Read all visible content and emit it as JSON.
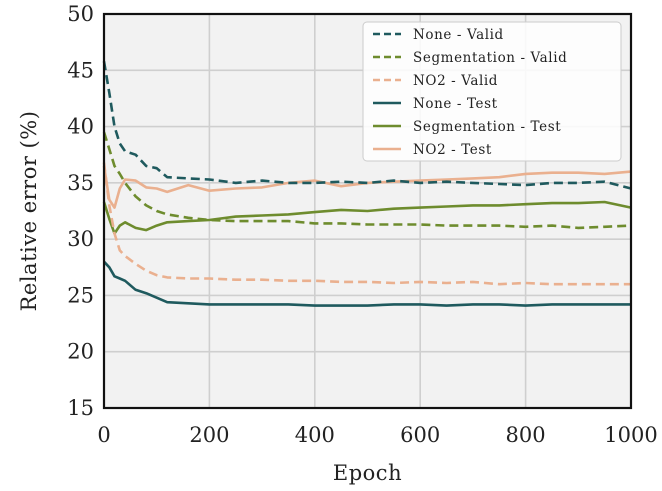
{
  "chart_data": {
    "type": "line",
    "xlabel": "Epoch",
    "ylabel": "Relative error (%)",
    "xlim": [
      0,
      1000
    ],
    "ylim": [
      15,
      50
    ],
    "xticks": [
      "0",
      "200",
      "400",
      "600",
      "800",
      "1000"
    ],
    "yticks": [
      "15",
      "20",
      "25",
      "30",
      "35",
      "40",
      "45",
      "50"
    ],
    "grid": true,
    "legend_position": "top-right",
    "series": [
      {
        "name": "None - Valid",
        "color": "#1f5a5e",
        "dash": "dashed",
        "x": [
          0,
          10,
          20,
          30,
          40,
          60,
          80,
          100,
          120,
          160,
          200,
          250,
          300,
          350,
          400,
          450,
          500,
          550,
          600,
          650,
          700,
          750,
          800,
          850,
          900,
          950,
          1000
        ],
        "y": [
          45.8,
          43.0,
          40.0,
          38.5,
          37.8,
          37.5,
          36.5,
          36.3,
          35.5,
          35.4,
          35.3,
          35.0,
          35.2,
          35.0,
          35.0,
          35.1,
          35.0,
          35.2,
          35.0,
          35.1,
          35.0,
          34.9,
          34.8,
          35.0,
          35.0,
          35.1,
          34.5
        ]
      },
      {
        "name": "Segmentation - Valid",
        "color": "#6e8c2e",
        "dash": "dashed",
        "x": [
          0,
          10,
          20,
          30,
          40,
          60,
          80,
          100,
          120,
          160,
          200,
          250,
          300,
          350,
          400,
          450,
          500,
          550,
          600,
          650,
          700,
          750,
          800,
          850,
          900,
          950,
          1000
        ],
        "y": [
          39.5,
          38.0,
          36.5,
          35.8,
          35.0,
          33.8,
          33.0,
          32.5,
          32.2,
          31.9,
          31.7,
          31.6,
          31.6,
          31.6,
          31.4,
          31.4,
          31.3,
          31.3,
          31.3,
          31.2,
          31.2,
          31.2,
          31.1,
          31.2,
          31.0,
          31.1,
          31.2
        ]
      },
      {
        "name": "NO2 - Valid",
        "color": "#eab08f",
        "dash": "dashed",
        "x": [
          0,
          10,
          20,
          30,
          40,
          60,
          80,
          100,
          120,
          160,
          200,
          250,
          300,
          350,
          400,
          450,
          500,
          550,
          600,
          650,
          700,
          750,
          800,
          850,
          900,
          950,
          1000
        ],
        "y": [
          36.8,
          33.0,
          30.5,
          29.0,
          28.5,
          27.8,
          27.2,
          26.8,
          26.6,
          26.5,
          26.5,
          26.4,
          26.4,
          26.3,
          26.3,
          26.2,
          26.2,
          26.1,
          26.2,
          26.1,
          26.2,
          26.0,
          26.1,
          26.0,
          26.0,
          26.0,
          26.0
        ]
      },
      {
        "name": "None - Test",
        "color": "#1f5a5e",
        "dash": "solid",
        "x": [
          0,
          10,
          20,
          30,
          40,
          60,
          80,
          100,
          120,
          160,
          200,
          250,
          300,
          350,
          400,
          450,
          500,
          550,
          600,
          650,
          700,
          750,
          800,
          850,
          900,
          950,
          1000
        ],
        "y": [
          28.0,
          27.5,
          26.7,
          26.5,
          26.3,
          25.5,
          25.2,
          24.8,
          24.4,
          24.3,
          24.2,
          24.2,
          24.2,
          24.2,
          24.1,
          24.1,
          24.1,
          24.2,
          24.2,
          24.1,
          24.2,
          24.2,
          24.1,
          24.2,
          24.2,
          24.2,
          24.2
        ]
      },
      {
        "name": "Segmentation - Test",
        "color": "#6e8c2e",
        "dash": "solid",
        "x": [
          0,
          10,
          20,
          30,
          40,
          60,
          80,
          100,
          120,
          160,
          200,
          250,
          300,
          350,
          400,
          450,
          500,
          550,
          600,
          650,
          700,
          750,
          800,
          850,
          900,
          950,
          1000
        ],
        "y": [
          33.3,
          31.8,
          30.5,
          31.2,
          31.5,
          31.0,
          30.8,
          31.2,
          31.5,
          31.6,
          31.7,
          32.0,
          32.1,
          32.2,
          32.4,
          32.6,
          32.5,
          32.7,
          32.8,
          32.9,
          33.0,
          33.0,
          33.1,
          33.2,
          33.2,
          33.3,
          32.8
        ]
      },
      {
        "name": "NO2 - Test",
        "color": "#eab08f",
        "dash": "solid",
        "x": [
          0,
          10,
          20,
          30,
          40,
          60,
          80,
          100,
          120,
          160,
          200,
          250,
          300,
          350,
          400,
          450,
          500,
          550,
          600,
          650,
          700,
          750,
          800,
          850,
          900,
          950,
          1000
        ],
        "y": [
          36.5,
          33.5,
          32.8,
          34.5,
          35.3,
          35.2,
          34.6,
          34.5,
          34.2,
          34.8,
          34.3,
          34.5,
          34.6,
          35.0,
          35.2,
          34.7,
          35.0,
          35.1,
          35.2,
          35.3,
          35.4,
          35.5,
          35.8,
          35.9,
          35.9,
          35.8,
          36.0
        ]
      }
    ]
  }
}
